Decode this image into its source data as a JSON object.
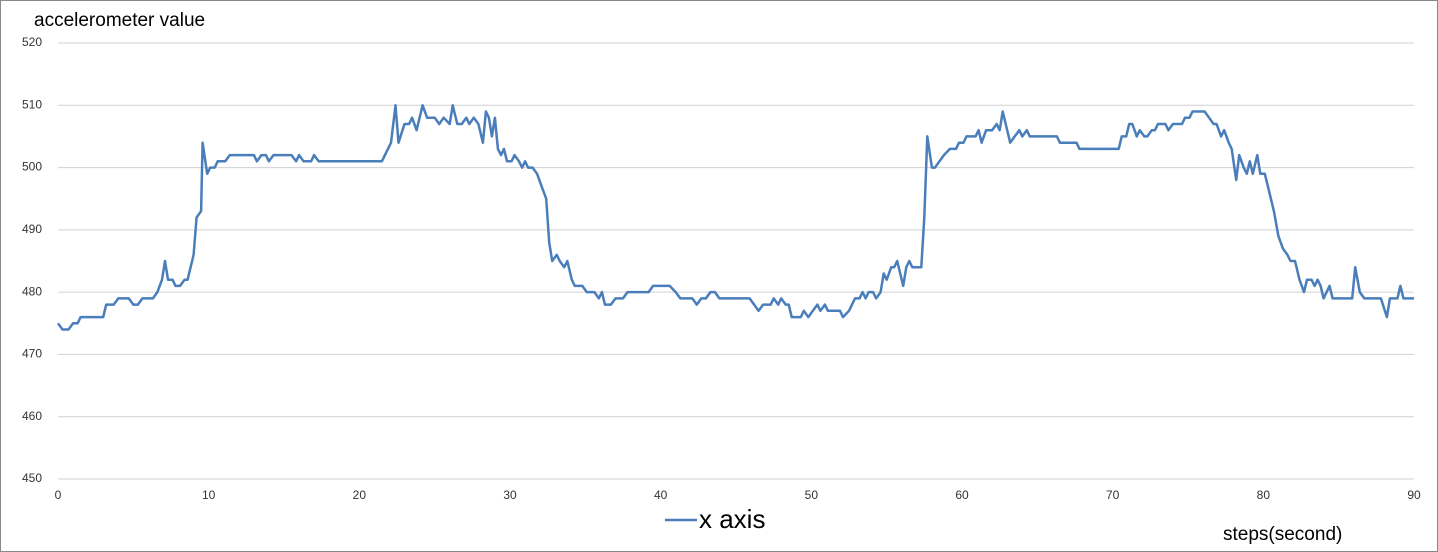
{
  "chart_data": {
    "type": "line",
    "y_label": "accelerometer value",
    "x_label": "steps(second)",
    "x": [
      0,
      0.3,
      0.7,
      1,
      1.3,
      1.5,
      2,
      2.5,
      3,
      3.2,
      3.7,
      4,
      4.7,
      5,
      5.3,
      5.6,
      6.3,
      6.6,
      6.9,
      7.1,
      7.3,
      7.6,
      7.8,
      8.1,
      8.4,
      8.6,
      9,
      9.2,
      9.5,
      9.6,
      9.9,
      10.1,
      10.4,
      10.6,
      11.1,
      11.4,
      13,
      13.2,
      13.5,
      13.8,
      14,
      14.3,
      15.5,
      15.8,
      16,
      16.3,
      16.8,
      17,
      17.3,
      21.5,
      22.1,
      22.4,
      22.6,
      23,
      23.3,
      23.5,
      23.8,
      24.2,
      24.5,
      25,
      25.3,
      25.6,
      26,
      26.2,
      26.5,
      26.8,
      27.1,
      27.3,
      27.6,
      27.9,
      28.2,
      28.4,
      28.6,
      28.8,
      29,
      29.2,
      29.4,
      29.6,
      29.8,
      30.1,
      30.3,
      30.6,
      30.8,
      31,
      31.2,
      31.5,
      31.8,
      32.1,
      32.4,
      32.6,
      32.8,
      33.1,
      33.3,
      33.6,
      33.8,
      34.1,
      34.3,
      34.8,
      35.1,
      35.6,
      35.9,
      36.1,
      36.3,
      36.7,
      37,
      37.5,
      37.8,
      39.2,
      39.5,
      40.6,
      41,
      41.3,
      42.1,
      42.4,
      42.7,
      43,
      43.3,
      43.6,
      43.9,
      45.9,
      46.2,
      46.5,
      46.8,
      47.3,
      47.5,
      47.8,
      48,
      48.3,
      48.5,
      48.7,
      49.3,
      49.5,
      49.8,
      50.1,
      50.4,
      50.6,
      50.9,
      51.1,
      51.9,
      52.1,
      52.5,
      52.9,
      53.2,
      53.4,
      53.6,
      53.8,
      54.1,
      54.3,
      54.6,
      54.8,
      55,
      55.3,
      55.5,
      55.7,
      55.9,
      56.1,
      56.3,
      56.5,
      56.7,
      57.3,
      57.5,
      57.7,
      58,
      58.2,
      58.8,
      59.2,
      59.6,
      59.8,
      60.1,
      60.3,
      60.9,
      61.1,
      61.3,
      61.6,
      62,
      62.3,
      62.5,
      62.7,
      63,
      63.2,
      63.5,
      63.8,
      64,
      64.3,
      64.5,
      66.3,
      66.5,
      67.6,
      67.8,
      70.4,
      70.6,
      70.9,
      71.1,
      71.3,
      71.6,
      71.8,
      72.1,
      72.3,
      72.6,
      72.8,
      73,
      73.5,
      73.7,
      74,
      74.6,
      74.8,
      75.1,
      75.3,
      76.1,
      76.4,
      76.7,
      76.9,
      77.2,
      77.4,
      77.7,
      77.9,
      78.2,
      78.4,
      78.7,
      78.9,
      79.1,
      79.3,
      79.6,
      79.8,
      80.1,
      80.3,
      80.7,
      81,
      81.3,
      81.6,
      81.8,
      82.1,
      82.4,
      82.7,
      82.9,
      83.2,
      83.4,
      83.6,
      83.8,
      84,
      84.2,
      84.4,
      84.6,
      85.9,
      86.1,
      86.4,
      86.7,
      87.8,
      88.2,
      88.4,
      88.9,
      89.1,
      89.3,
      90
    ],
    "series": [
      {
        "name": "x axis",
        "color": "#4a7ebb",
        "values": [
          475,
          474,
          474,
          475,
          475,
          476,
          476,
          476,
          476,
          478,
          478,
          479,
          479,
          478,
          478,
          479,
          479,
          480,
          482,
          485,
          482,
          482,
          481,
          481,
          482,
          482,
          486,
          492,
          493,
          504,
          499,
          500,
          500,
          501,
          501,
          502,
          502,
          501,
          502,
          502,
          501,
          502,
          502,
          501,
          502,
          501,
          501,
          502,
          501,
          501,
          504,
          510,
          504,
          507,
          507,
          508,
          506,
          510,
          508,
          508,
          507,
          508,
          507,
          510,
          507,
          507,
          508,
          507,
          508,
          507,
          504,
          509,
          508,
          505,
          508,
          503,
          502,
          503,
          501,
          501,
          502,
          501,
          500,
          501,
          500,
          500,
          499,
          497,
          495,
          488,
          485,
          486,
          485,
          484,
          485,
          482,
          481,
          481,
          480,
          480,
          479,
          480,
          478,
          478,
          479,
          479,
          480,
          480,
          481,
          481,
          480,
          479,
          479,
          478,
          479,
          479,
          480,
          480,
          479,
          479,
          478,
          477,
          478,
          478,
          479,
          478,
          479,
          478,
          478,
          476,
          476,
          477,
          476,
          477,
          478,
          477,
          478,
          477,
          477,
          476,
          477,
          479,
          479,
          480,
          479,
          480,
          480,
          479,
          480,
          483,
          482,
          484,
          484,
          485,
          483,
          481,
          484,
          485,
          484,
          484,
          492,
          505,
          500,
          500,
          502,
          503,
          503,
          504,
          504,
          505,
          505,
          506,
          504,
          506,
          506,
          507,
          506,
          509,
          506,
          504,
          505,
          506,
          505,
          506,
          505,
          505,
          504,
          504,
          503,
          503,
          505,
          505,
          507,
          507,
          505,
          506,
          505,
          505,
          506,
          506,
          507,
          507,
          506,
          507,
          507,
          508,
          508,
          509,
          509,
          508,
          507,
          507,
          505,
          506,
          504,
          503,
          498,
          502,
          500,
          499,
          501,
          499,
          502,
          499,
          499,
          497,
          493,
          489,
          487,
          486,
          485,
          485,
          482,
          480,
          482,
          482,
          481,
          482,
          481,
          479,
          480,
          481,
          479,
          479,
          484,
          480,
          479,
          479,
          476,
          479,
          479,
          481,
          479,
          479
        ]
      }
    ],
    "xlim": [
      0,
      90
    ],
    "xticks": [
      0,
      10,
      20,
      30,
      40,
      50,
      60,
      70,
      80,
      90
    ],
    "ylim": [
      450,
      520
    ],
    "yticks": [
      450,
      460,
      470,
      480,
      490,
      500,
      510,
      520
    ],
    "grid": true,
    "legend": "bottom"
  }
}
